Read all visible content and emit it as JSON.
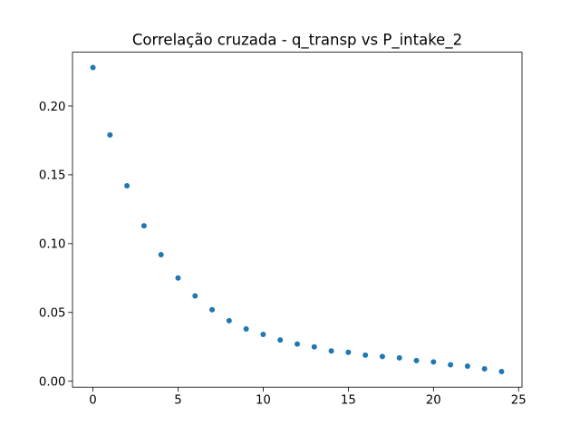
{
  "chart_data": {
    "type": "scatter",
    "title": "Correlação cruzada - q_transp vs P_intake_2",
    "xlabel": "",
    "ylabel": "",
    "xlim": [
      -1.2,
      25.2
    ],
    "ylim": [
      -0.0043,
      0.2391
    ],
    "xticks": [
      0,
      5,
      10,
      15,
      20,
      25
    ],
    "xtick_labels": [
      "0",
      "5",
      "10",
      "15",
      "20",
      "25"
    ],
    "yticks": [
      0.0,
      0.05,
      0.1,
      0.15,
      0.2
    ],
    "ytick_labels": [
      "0.00",
      "0.05",
      "0.10",
      "0.15",
      "0.20"
    ],
    "grid": false,
    "marker_color": "#1f77b4",
    "series": [
      {
        "x": [
          0,
          1,
          2,
          3,
          4,
          5,
          6,
          7,
          8,
          9,
          10,
          11,
          12,
          13,
          14,
          15,
          16,
          17,
          18,
          19,
          20,
          21,
          22,
          23,
          24
        ],
        "y": [
          0.228,
          0.179,
          0.142,
          0.113,
          0.092,
          0.075,
          0.062,
          0.052,
          0.044,
          0.038,
          0.034,
          0.03,
          0.027,
          0.025,
          0.022,
          0.021,
          0.019,
          0.018,
          0.017,
          0.015,
          0.014,
          0.012,
          0.011,
          0.009,
          0.007
        ]
      }
    ]
  }
}
